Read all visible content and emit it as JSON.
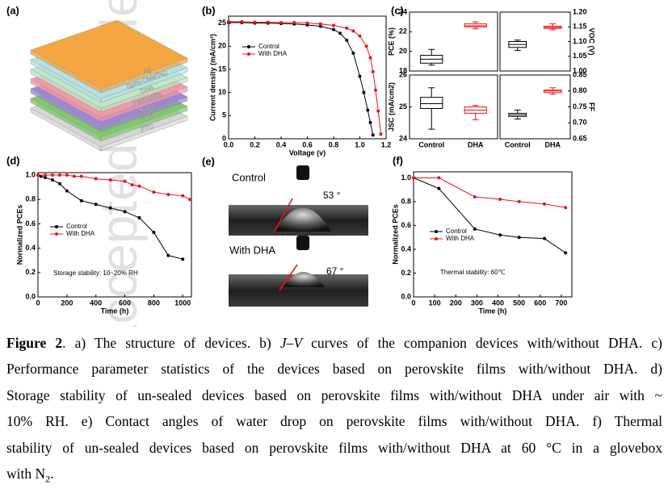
{
  "watermark": "Accepted Article",
  "diagram": {
    "panel_label": "(a)",
    "layers": [
      {
        "label": "Ag",
        "color": "#f2a541"
      },
      {
        "label": "Spiro-OMeTAD",
        "color": "#b4e2e4"
      },
      {
        "label": "DHA",
        "color": "#bfe7c8"
      },
      {
        "label": "Perovskite",
        "color": "#f19aa6"
      },
      {
        "label": "SnO2",
        "color": "#9d86d6"
      },
      {
        "label": "TiO2",
        "color": "#7fc96a"
      },
      {
        "label": "FTO",
        "color": "#d6d6d6"
      }
    ]
  },
  "photo": {
    "panel_label": "(e)",
    "top_label": "Control",
    "top_angle": "53 °",
    "bottom_label": "With DHA",
    "bottom_angle": "67 °"
  },
  "chart_data": [
    {
      "type": "line",
      "panel_label": "(b)",
      "xlabel": "Voltage (v)",
      "ylabel": "Current density (mA/cm²)",
      "xlim": [
        0,
        1.2
      ],
      "xticks": [
        {
          "value": 0,
          "label": "0.0"
        },
        {
          "value": 0.2,
          "label": "0.2"
        },
        {
          "value": 0.4,
          "label": "0.4"
        },
        {
          "value": 0.6,
          "label": "0.6"
        },
        {
          "value": 0.8,
          "label": "0.8"
        },
        {
          "value": 1,
          "label": "1.0"
        },
        {
          "value": 1.2,
          "label": "1.2"
        }
      ],
      "ylim": [
        0,
        26.5
      ],
      "yticks": [
        0,
        5,
        10,
        15,
        20,
        25
      ],
      "series": [
        {
          "name": "Control",
          "color": "#000000",
          "x": [
            0,
            0.1,
            0.2,
            0.3,
            0.4,
            0.5,
            0.6,
            0.7,
            0.8,
            0.85,
            0.9,
            0.95,
            1.0,
            1.03,
            1.06,
            1.08,
            1.1
          ],
          "values": [
            25.1,
            25.1,
            25.0,
            25.0,
            24.9,
            24.8,
            24.6,
            24.3,
            23.6,
            22.8,
            21.3,
            18.5,
            13.5,
            10.0,
            6.2,
            3.5,
            0.8
          ]
        },
        {
          "name": "With DHA",
          "color": "#e8141b",
          "x": [
            0,
            0.1,
            0.2,
            0.3,
            0.4,
            0.5,
            0.6,
            0.7,
            0.8,
            0.9,
            0.95,
            1.0,
            1.05,
            1.08,
            1.1,
            1.12,
            1.14,
            1.16
          ],
          "values": [
            25.3,
            25.3,
            25.2,
            25.2,
            25.1,
            25.1,
            25.0,
            24.8,
            24.5,
            23.9,
            23.3,
            22.2,
            20.0,
            17.5,
            14.5,
            10.5,
            6.0,
            1.0
          ]
        }
      ]
    },
    {
      "type": "box",
      "panel_label": "(c)",
      "ylabel": "PCE (%)",
      "y_axis_side": "left",
      "ylim": [
        18,
        24
      ],
      "yticks": [
        18,
        20,
        22,
        24
      ],
      "boxes": [
        {
          "color": "#000000",
          "min": 18.6,
          "q1": 18.8,
          "median": 19.2,
          "q3": 19.6,
          "max": 20.2
        },
        {
          "color": "#e8141b",
          "min": 22.3,
          "q1": 22.5,
          "median": 22.6,
          "q3": 22.8,
          "max": 23.0
        }
      ]
    },
    {
      "type": "box",
      "ylabel": "VOC (V)",
      "y_axis_side": "right",
      "ylim": [
        1.0,
        1.2
      ],
      "yticks": [
        {
          "value": 1.0,
          "label": "1.00"
        },
        {
          "value": 1.05,
          "label": "1.05"
        },
        {
          "value": 1.1,
          "label": "1.10"
        },
        {
          "value": 1.15,
          "label": "1.15"
        },
        {
          "value": 1.2,
          "label": "1.20"
        }
      ],
      "boxes": [
        {
          "color": "#000000",
          "min": 1.07,
          "q1": 1.08,
          "median": 1.09,
          "q3": 1.1,
          "max": 1.105
        },
        {
          "color": "#e8141b",
          "min": 1.14,
          "q1": 1.145,
          "median": 1.148,
          "q3": 1.152,
          "max": 1.16
        }
      ]
    },
    {
      "type": "box",
      "ylabel": "JSC (mA/cm2)",
      "y_axis_side": "left",
      "ylim": [
        24,
        26
      ],
      "yticks": [
        24,
        25,
        26
      ],
      "categories": [
        "Control",
        "DHA"
      ],
      "boxes": [
        {
          "color": "#000000",
          "min": 24.3,
          "q1": 24.95,
          "median": 25.1,
          "q3": 25.3,
          "max": 25.6
        },
        {
          "color": "#e8141b",
          "min": 24.6,
          "q1": 24.8,
          "median": 24.9,
          "q3": 25.0,
          "max": 25.05
        }
      ]
    },
    {
      "type": "box",
      "ylabel": "FF",
      "y_axis_side": "right",
      "ylim": [
        0.65,
        0.85
      ],
      "categories": [
        "Control",
        "DHA"
      ],
      "yticks": [
        {
          "value": 0.65,
          "label": "0.65"
        },
        {
          "value": 0.7,
          "label": "0.70"
        },
        {
          "value": 0.75,
          "label": "0.75"
        },
        {
          "value": 0.8,
          "label": "0.80"
        },
        {
          "value": 0.85,
          "label": "0.85"
        }
      ],
      "boxes": [
        {
          "color": "#000000",
          "min": 0.712,
          "q1": 0.72,
          "median": 0.725,
          "q3": 0.73,
          "max": 0.74
        },
        {
          "color": "#e8141b",
          "min": 0.79,
          "q1": 0.795,
          "median": 0.8,
          "q3": 0.803,
          "max": 0.81
        }
      ]
    },
    {
      "type": "line",
      "panel_label": "(d)",
      "xlabel": "Time (h)",
      "ylabel": "Normalized PCEs",
      "annotation": "Storage stability: 10~20% RH",
      "xlim": [
        0,
        1060
      ],
      "xticks": [
        0,
        200,
        400,
        600,
        800,
        1000
      ],
      "ylim": [
        0,
        1.02
      ],
      "yticks": [
        {
          "value": 0,
          "label": "0.0"
        },
        {
          "value": 0.2,
          "label": "0.2"
        },
        {
          "value": 0.4,
          "label": "0.4"
        },
        {
          "value": 0.6,
          "label": "0.6"
        },
        {
          "value": 0.8,
          "label": "0.8"
        },
        {
          "value": 1,
          "label": "1.0"
        }
      ],
      "series": [
        {
          "name": "Control",
          "color": "#000000",
          "x": [
            0,
            20,
            50,
            100,
            150,
            200,
            300,
            400,
            500,
            600,
            700,
            800,
            900,
            1000
          ],
          "values": [
            1.0,
            0.99,
            0.98,
            0.96,
            0.93,
            0.87,
            0.79,
            0.76,
            0.73,
            0.7,
            0.65,
            0.53,
            0.34,
            0.31
          ]
        },
        {
          "name": "With DHA",
          "color": "#e8141b",
          "x": [
            0,
            50,
            100,
            150,
            200,
            250,
            300,
            400,
            500,
            600,
            650,
            700,
            800,
            900,
            1000,
            1050
          ],
          "values": [
            1.0,
            1.0,
            1.0,
            1.0,
            1.0,
            0.99,
            0.99,
            0.97,
            0.96,
            0.95,
            0.92,
            0.91,
            0.86,
            0.84,
            0.83,
            0.8
          ]
        }
      ]
    },
    {
      "type": "line",
      "panel_label": "(f)",
      "xlabel": "Time (h)",
      "ylabel": "Normalized PCEs",
      "annotation": "Thermal stability: 60℃",
      "xlim": [
        0,
        750
      ],
      "xticks": [
        0,
        100,
        200,
        300,
        400,
        500,
        600,
        700
      ],
      "ylim": [
        0,
        1.05
      ],
      "yticks": [
        {
          "value": 0,
          "label": "0.0"
        },
        {
          "value": 0.2,
          "label": "0.2"
        },
        {
          "value": 0.4,
          "label": "0.4"
        },
        {
          "value": 0.6,
          "label": "0.6"
        },
        {
          "value": 0.8,
          "label": "0.8"
        },
        {
          "value": 1,
          "label": "1.0"
        }
      ],
      "series": [
        {
          "name": "Control",
          "color": "#000000",
          "x": [
            0,
            120,
            290,
            410,
            500,
            620,
            720
          ],
          "values": [
            1.0,
            0.91,
            0.57,
            0.52,
            0.5,
            0.49,
            0.37
          ]
        },
        {
          "name": "With DHA",
          "color": "#e8141b",
          "x": [
            0,
            120,
            290,
            410,
            500,
            620,
            720
          ],
          "values": [
            1.0,
            1.0,
            0.84,
            0.82,
            0.8,
            0.78,
            0.75
          ]
        }
      ]
    }
  ],
  "caption": {
    "lines": [
      [
        {
          "text": "Figure 2",
          "style": "bold"
        },
        ". a) The structure of devices. b) ",
        {
          "text": "J–V",
          "style": "italic"
        },
        " curves of the companion devices with/without DHA. c)"
      ],
      [
        "Performance parameter statistics of the devices based on perovskite films with/without DHA. d)"
      ],
      [
        "Storage stability of un-sealed devices based on perovskite films with/without DHA under air with ~"
      ],
      [
        "10% RH. e) Contact angles of water drop on perovskite films with/without DHA. f) Thermal"
      ],
      [
        "stability of un-sealed devices based on perovskite films with/without DHA at 60 °C in a glovebox"
      ],
      [
        "with N",
        {
          "text": "2",
          "style": "sub"
        },
        "."
      ]
    ]
  }
}
